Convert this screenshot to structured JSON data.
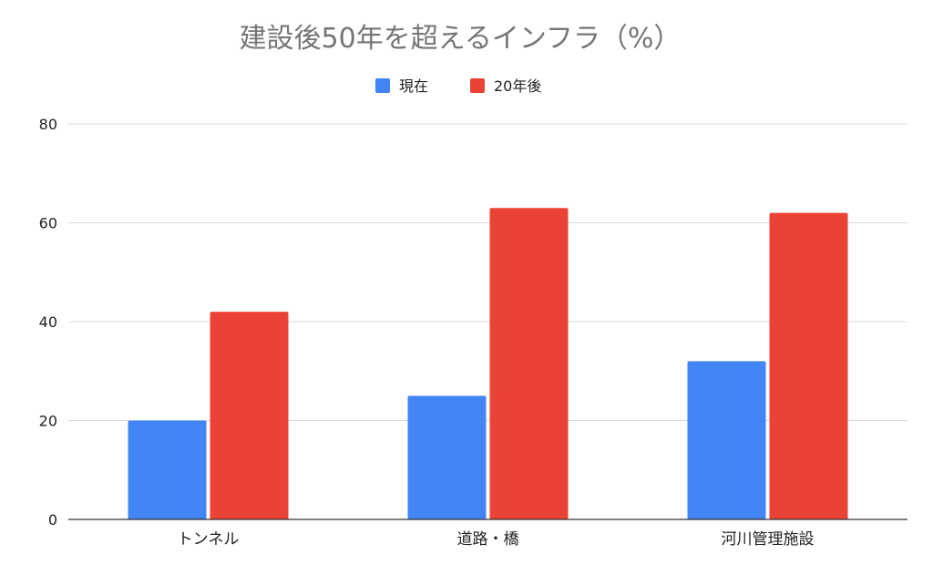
{
  "chart_data": {
    "type": "bar",
    "title": "建設後50年を超えるインフラ（%）",
    "categories": [
      "トンネル",
      "道路・橋",
      "河川管理施設"
    ],
    "series": [
      {
        "name": "現在",
        "color": "#4285f4",
        "values": [
          20,
          25,
          32
        ]
      },
      {
        "name": "20年後",
        "color": "#ea4335",
        "values": [
          42,
          63,
          62
        ]
      }
    ],
    "xlabel": "",
    "ylabel": "",
    "ylim": [
      0,
      80
    ],
    "yticks": [
      0,
      20,
      40,
      60,
      80
    ],
    "grid": true,
    "legend_position": "top-center"
  }
}
